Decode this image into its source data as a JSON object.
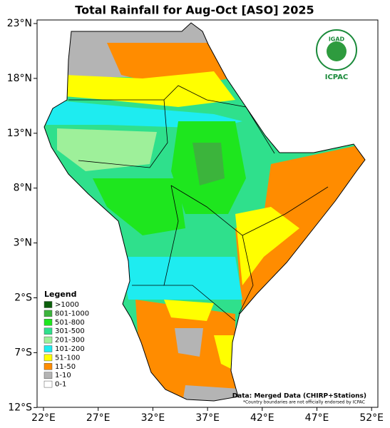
{
  "title": "Total Rainfall for Aug-Oct [ASO] 2025",
  "logo": {
    "top": "IGAD",
    "bottom": "ICPAC"
  },
  "axes": {
    "lat": [
      "23°N",
      "18°N",
      "13°N",
      "8°N",
      "3°N",
      "2°S",
      "7°S",
      "12°S"
    ],
    "lon": [
      "22°E",
      "27°E",
      "32°E",
      "37°E",
      "42°E",
      "47°E",
      "52°E"
    ]
  },
  "legend": {
    "title": "Legend",
    "items": [
      {
        "label": ">1000",
        "color": "#0b5e0b"
      },
      {
        "label": "801-1000",
        "color": "#3cb43c"
      },
      {
        "label": "501-800",
        "color": "#1ee61e"
      },
      {
        "label": "301-500",
        "color": "#2fe08c"
      },
      {
        "label": "201-300",
        "color": "#9ef09a"
      },
      {
        "label": "101-200",
        "color": "#1eecf0"
      },
      {
        "label": "51-100",
        "color": "#ffff00"
      },
      {
        "label": "11-50",
        "color": "#ff8c00"
      },
      {
        "label": "1-10",
        "color": "#b4b4b4"
      },
      {
        "label": "0-1",
        "color": "#ffffff"
      }
    ]
  },
  "source": "Data: Merged Data (CHIRP+Stations)",
  "note": "*Country boundaries are not officially endorsed by ICPAC"
}
